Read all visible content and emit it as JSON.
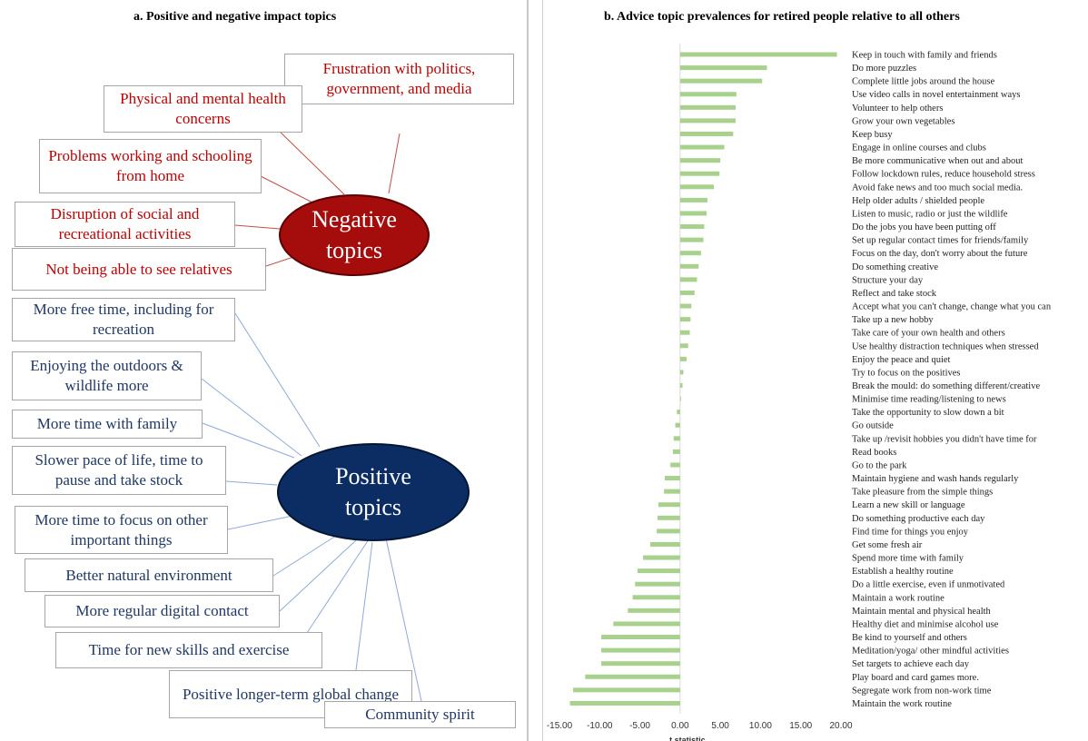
{
  "panel_a": {
    "title": "a. Positive and negative impact topics",
    "negative_center": "Negative topics",
    "positive_center": "Positive topics",
    "negative_topics": [
      "Frustration with politics, government, and media",
      "Physical and mental health concerns",
      "Problems working and schooling from home",
      "Disruption of social and recreational activities",
      "Not being able to see relatives"
    ],
    "positive_topics": [
      "More free time, including for recreation",
      "Enjoying the outdoors & wildlife more",
      "More time with family",
      "Slower pace of life, time to pause and take stock",
      "More time to focus on other important things",
      "Better natural environment",
      "More regular digital contact",
      "Time for new skills and exercise",
      "Positive longer-term global change",
      "Community spirit"
    ],
    "colors": {
      "negative_text": "#c00000",
      "positive_text": "#1f3864",
      "negative_fill": "#a50c0c",
      "positive_fill": "#0b2d63"
    }
  },
  "chart_data": {
    "type": "bar",
    "orientation": "horizontal",
    "title": "b. Advice topic prevalences for retired people relative to all others",
    "xlabel": "t statistic",
    "ylabel": "",
    "xlim": [
      -15,
      20
    ],
    "xticks": [
      "-15.00",
      "-10.00",
      "-5.00",
      "0.00",
      "5.00",
      "10.00",
      "15.00",
      "20.00"
    ],
    "bar_color": "#a9d18e",
    "categories": [
      "Keep in touch with family and friends",
      "Do more puzzles",
      "Complete little jobs around the house",
      "Use video calls in novel entertainment  ways",
      "Volunteer to help others",
      "Grow your own vegetables",
      "Keep busy",
      "Engage in online courses and clubs",
      "Be more communicative when out and about",
      "Follow lockdown rules, reduce household stress",
      "Avoid fake news and too much social media.",
      "Help older adults / shielded people",
      "Listen to music, radio or just the wildlife",
      "Do the jobs you have been putting off",
      "Set up regular contact times for friends/family",
      "Focus on the day, don't worry about the future",
      "Do something creative",
      "Structure your day",
      "Reflect and take stock",
      "Accept what you can't change, change what you can",
      "Take up a new hobby",
      "Take care of your own health and others",
      "Use healthy distraction techniques when stressed",
      "Enjoy the peace and quiet",
      "Try to focus on the positives",
      "Break the mould: do something different/creative",
      "Minimise time reading/listening to news",
      "Take the opportunity to slow down a bit",
      "Go outside",
      "Take up /revisit hobbies you didn't have time for",
      "Read books",
      "Go to the park",
      "Maintain hygiene and wash hands regularly",
      "Take pleasure from the simple things",
      "Learn a new skill or language",
      "Do something productive each day",
      "Find time for things you enjoy",
      "Get some fresh air",
      "Spend more time with family",
      "Establish a healthy routine",
      "Do a little exercise, even if unmotivated",
      "Maintain a work routine",
      "Maintain mental and physical health",
      "Healthy diet and minimise alcohol use",
      "Be kind to yourself and others",
      "Meditation/yoga/ other mindful activities",
      "Set targets to achieve each day",
      "Play board and card games more.",
      "Segregate work from non-work time",
      "Maintain the work routine"
    ],
    "values": [
      19.5,
      10.8,
      10.2,
      7.0,
      6.9,
      6.9,
      6.6,
      5.5,
      5.0,
      4.9,
      4.2,
      3.4,
      3.3,
      3.0,
      2.9,
      2.6,
      2.3,
      2.1,
      1.8,
      1.4,
      1.3,
      1.2,
      1.0,
      0.8,
      0.4,
      0.3,
      0.1,
      -0.4,
      -0.6,
      -0.8,
      -0.9,
      -1.2,
      -1.9,
      -2.0,
      -2.7,
      -2.8,
      -2.9,
      -3.7,
      -4.6,
      -5.3,
      -5.6,
      -5.9,
      -6.5,
      -8.3,
      -9.8,
      -9.8,
      -9.8,
      -11.8,
      -13.3,
      -13.7
    ]
  }
}
